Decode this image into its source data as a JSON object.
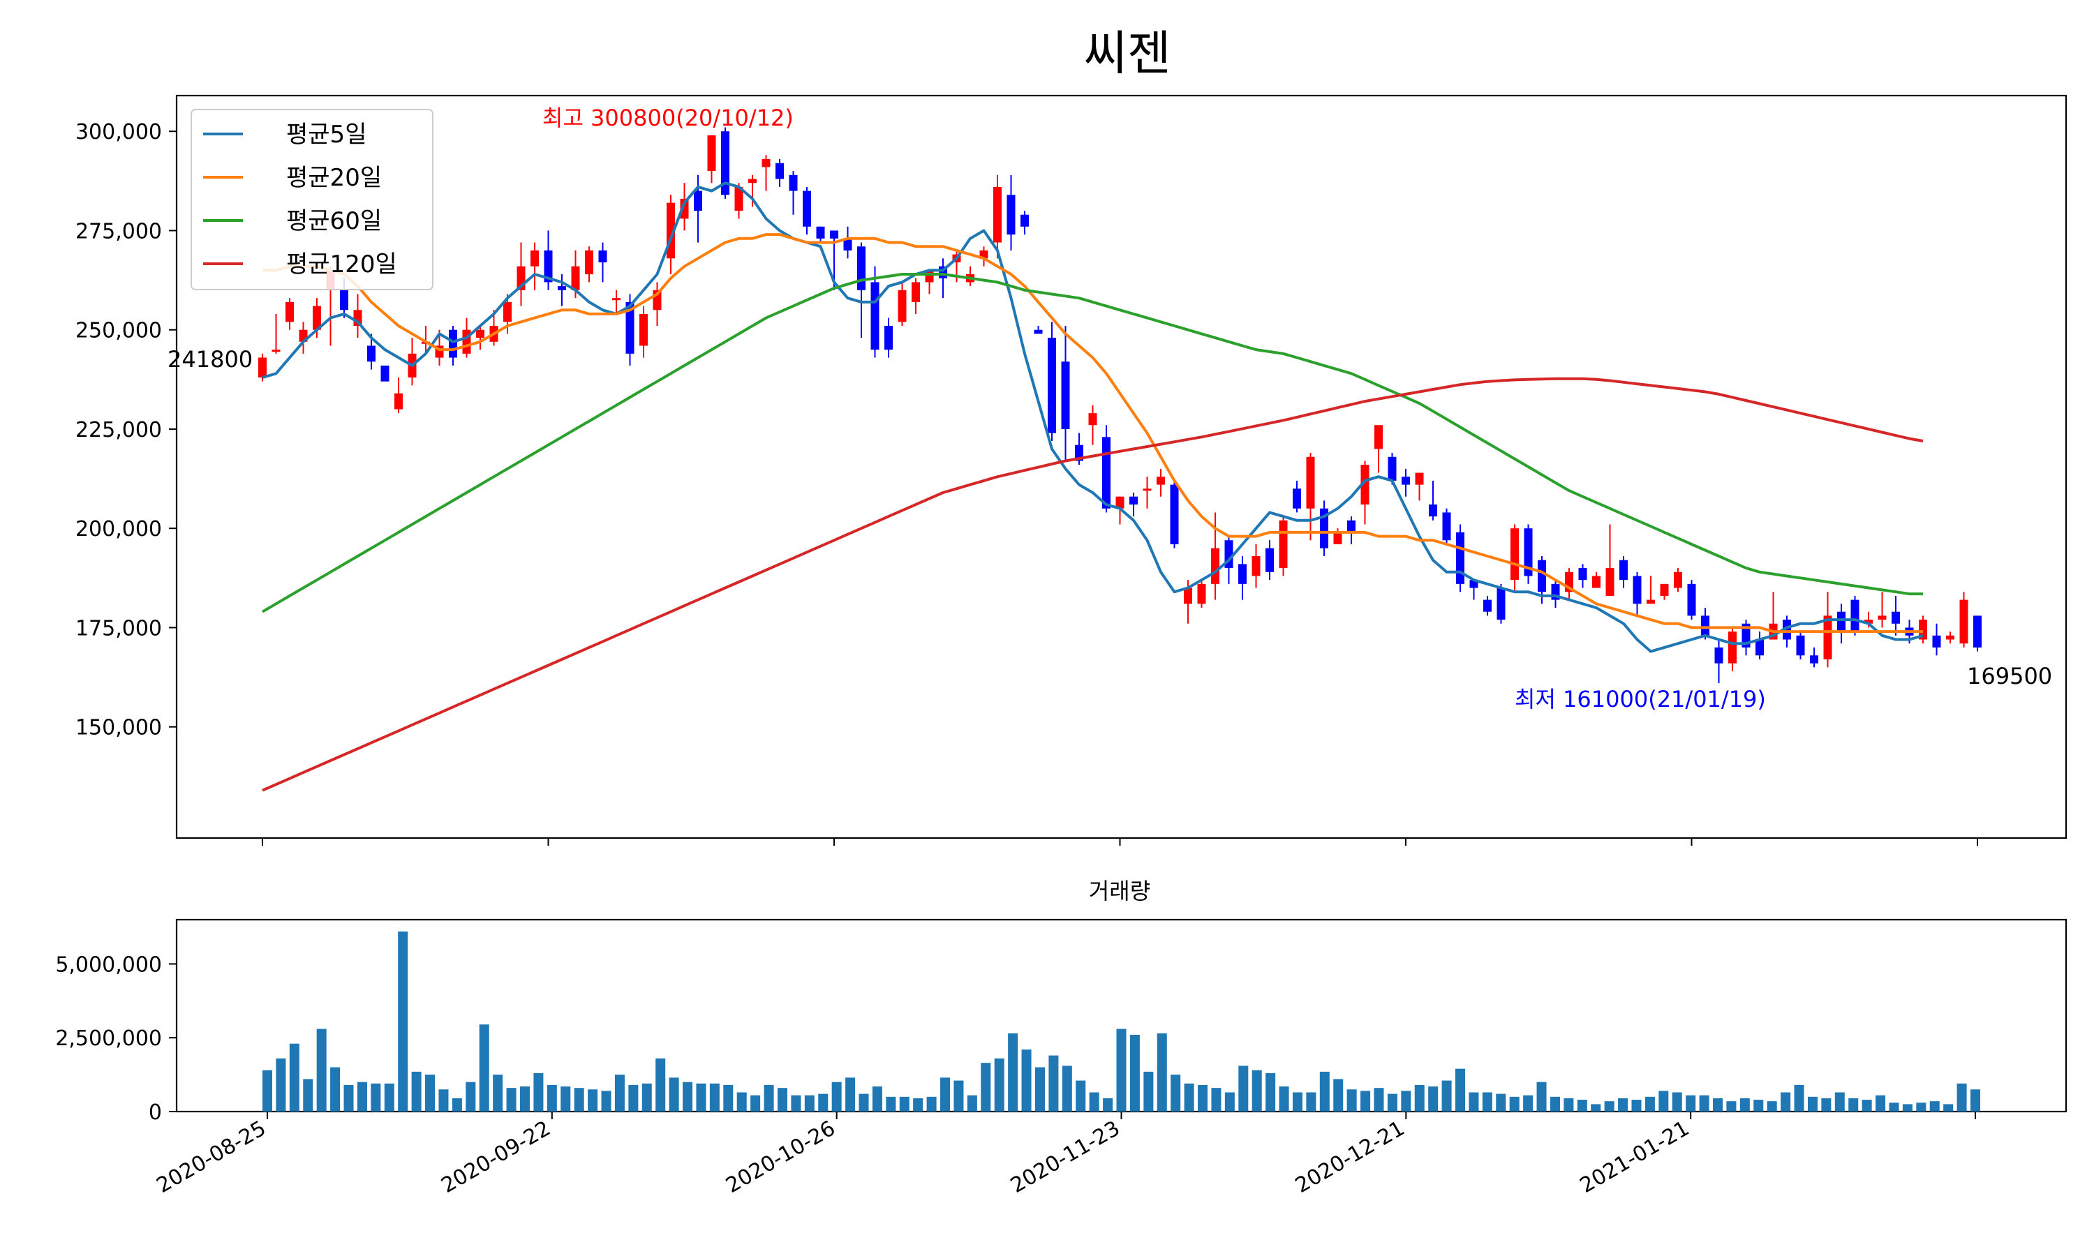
{
  "title": "씨젠",
  "chart_data": [
    {
      "type": "candlestick",
      "panel": "price",
      "ylim": [
        122000,
        309000
      ],
      "y_ticks": [
        150000,
        175000,
        200000,
        225000,
        250000,
        275000,
        300000
      ],
      "y_tick_labels": [
        "150,000",
        "175,000",
        "200,000",
        "225,000",
        "250,000",
        "275,000",
        "300,000"
      ],
      "grid": false,
      "legend_position": "top-left",
      "series": [
        {
          "name": "평균5일",
          "color": "#1f77b4",
          "values": [
            238000,
            239000,
            243000,
            247000,
            250000,
            253000,
            254000,
            252000,
            248000,
            245000,
            243000,
            241000,
            244000,
            249000,
            247000,
            248000,
            251000,
            254000,
            258000,
            261000,
            264000,
            263000,
            262000,
            260000,
            257000,
            255000,
            254000,
            256000,
            260000,
            264000,
            273000,
            282000,
            286000,
            285000,
            287000,
            286000,
            283000,
            278000,
            275000,
            273000,
            272000,
            271000,
            262000,
            258000,
            257000,
            257000,
            261000,
            262000,
            264000,
            265000,
            265000,
            268000,
            273000,
            275000,
            270000,
            258000,
            244000,
            232000,
            220000,
            215000,
            211000,
            209000,
            206000,
            205000,
            202000,
            197000,
            189000,
            184000,
            185000,
            187000,
            189000,
            192000,
            196000,
            200000,
            204000,
            203000,
            202000,
            202000,
            203000,
            205000,
            208000,
            212000,
            213000,
            212000,
            205000,
            198000,
            192000,
            189000,
            189000,
            187000,
            186000,
            185000,
            184000,
            184000,
            183000,
            183000,
            182000,
            181000,
            180000,
            178000,
            176000,
            172000,
            169000,
            170000,
            171000,
            172000,
            173000,
            172000,
            171000,
            171000,
            172000,
            173000,
            175000,
            176000,
            176000,
            177000,
            177000,
            177000,
            176000,
            173000,
            172000,
            172000,
            173000
          ],
          "values_note": "ignored"
        }
      ]
    }
  ]
}
